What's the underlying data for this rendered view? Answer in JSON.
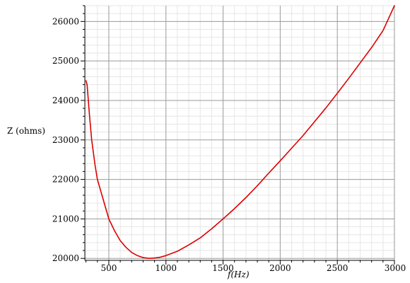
{
  "chart_data": {
    "type": "line",
    "title": "",
    "xlabel": {
      "prefix": "f",
      "unit": "(Hz)"
    },
    "ylabel": "Z (ohms)",
    "xlim": [
      290,
      3000
    ],
    "ylim": [
      19950,
      26400
    ],
    "x_major_ticks": [
      500,
      1000,
      1500,
      2000,
      2500,
      3000
    ],
    "x_tick_labels": [
      "500",
      "1000",
      "1500",
      "2000",
      "2500",
      "3000"
    ],
    "x_minor_step": 100,
    "y_major_ticks": [
      20000,
      21000,
      22000,
      23000,
      24000,
      25000,
      26000
    ],
    "y_tick_labels": [
      "20000",
      "21000",
      "22000",
      "23000",
      "24000",
      "25000",
      "26000"
    ],
    "y_minor_step": 200,
    "grid": true,
    "colors": {
      "series": "#dd0000",
      "grid_major": "#9a9a9a",
      "grid_minor": "#e6e6e6",
      "axis": "#000000"
    },
    "series": [
      {
        "x": [
          300,
          310,
          330,
          350,
          380,
          400,
          450,
          500,
          550,
          600,
          650,
          700,
          750,
          800,
          850,
          900,
          950,
          1000,
          1100,
          1200,
          1300,
          1400,
          1500,
          1600,
          1700,
          1800,
          1900,
          2000,
          2100,
          2200,
          2300,
          2400,
          2500,
          2600,
          2700,
          2800,
          2900,
          3000
        ],
        "y": [
          24500,
          24400,
          23650,
          23000,
          22350,
          22000,
          21500,
          21000,
          20700,
          20450,
          20280,
          20150,
          20070,
          20020,
          20000,
          20010,
          20030,
          20070,
          20180,
          20340,
          20520,
          20750,
          21000,
          21260,
          21540,
          21840,
          22160,
          22470,
          22790,
          23110,
          23460,
          23810,
          24180,
          24560,
          24950,
          25340,
          25770,
          26400
        ]
      }
    ]
  }
}
